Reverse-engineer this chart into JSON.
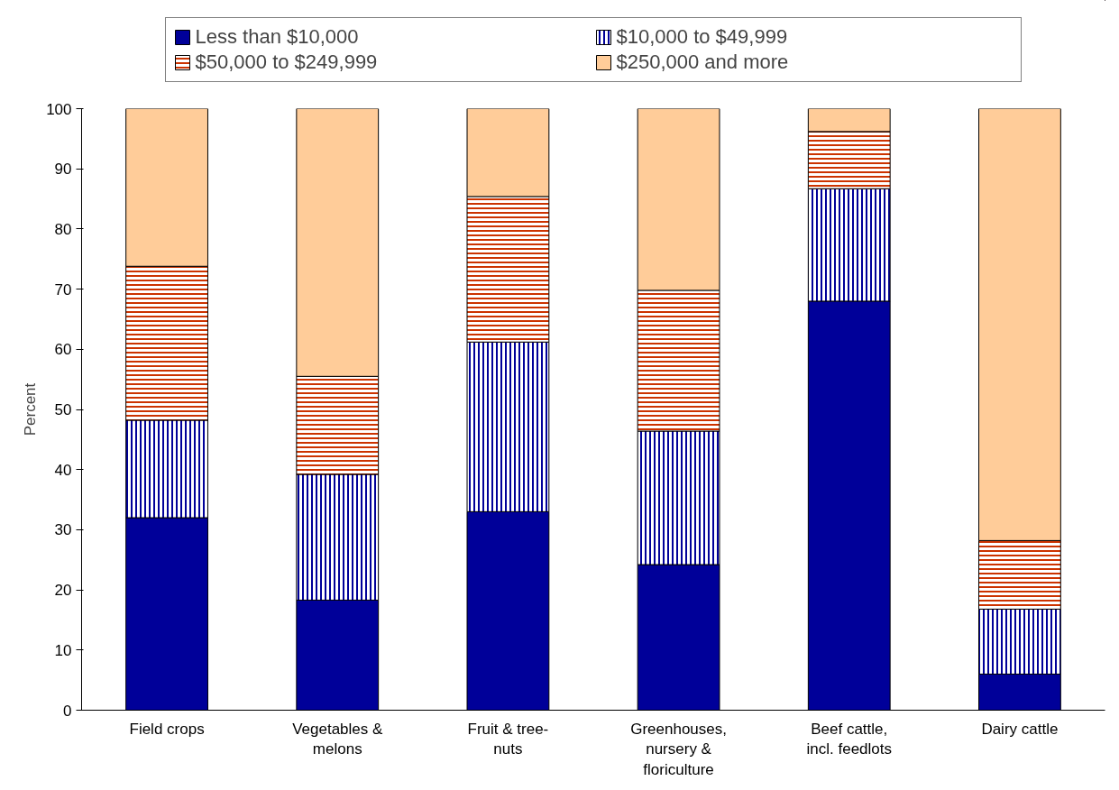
{
  "chart_data": {
    "type": "bar",
    "stacked": true,
    "ylabel": "Percent",
    "categories": [
      "Field crops",
      "Vegetables & melons",
      "Fruit & tree-nuts",
      "Greenhouses, nursery & floriculture",
      "Beef cattle, incl. feedlots",
      "Dairy cattle"
    ],
    "series": [
      {
        "name": "Less than $10,000",
        "color": "#000099",
        "values": [
          32,
          18.3,
          33,
          24.2,
          68,
          6
        ]
      },
      {
        "name": "$10,000 to $49,999",
        "color": "#000099",
        "values": [
          16.2,
          20.9,
          28.2,
          22.2,
          18.7,
          10.8
        ]
      },
      {
        "name": "$50,000 to $249,999",
        "color": "#cc3300",
        "values": [
          25.6,
          16.3,
          24.2,
          23.4,
          9.5,
          11.4
        ]
      },
      {
        "name": "$250,000 and more",
        "color": "#ffcc99",
        "values": [
          26.2,
          44.5,
          14.6,
          30.2,
          3.8,
          71.8
        ]
      }
    ],
    "ylim": [
      0,
      100
    ],
    "yticks": [
      0,
      10,
      20,
      30,
      40,
      50,
      60,
      70,
      80,
      90,
      100
    ],
    "grid": false,
    "legend": "top"
  }
}
